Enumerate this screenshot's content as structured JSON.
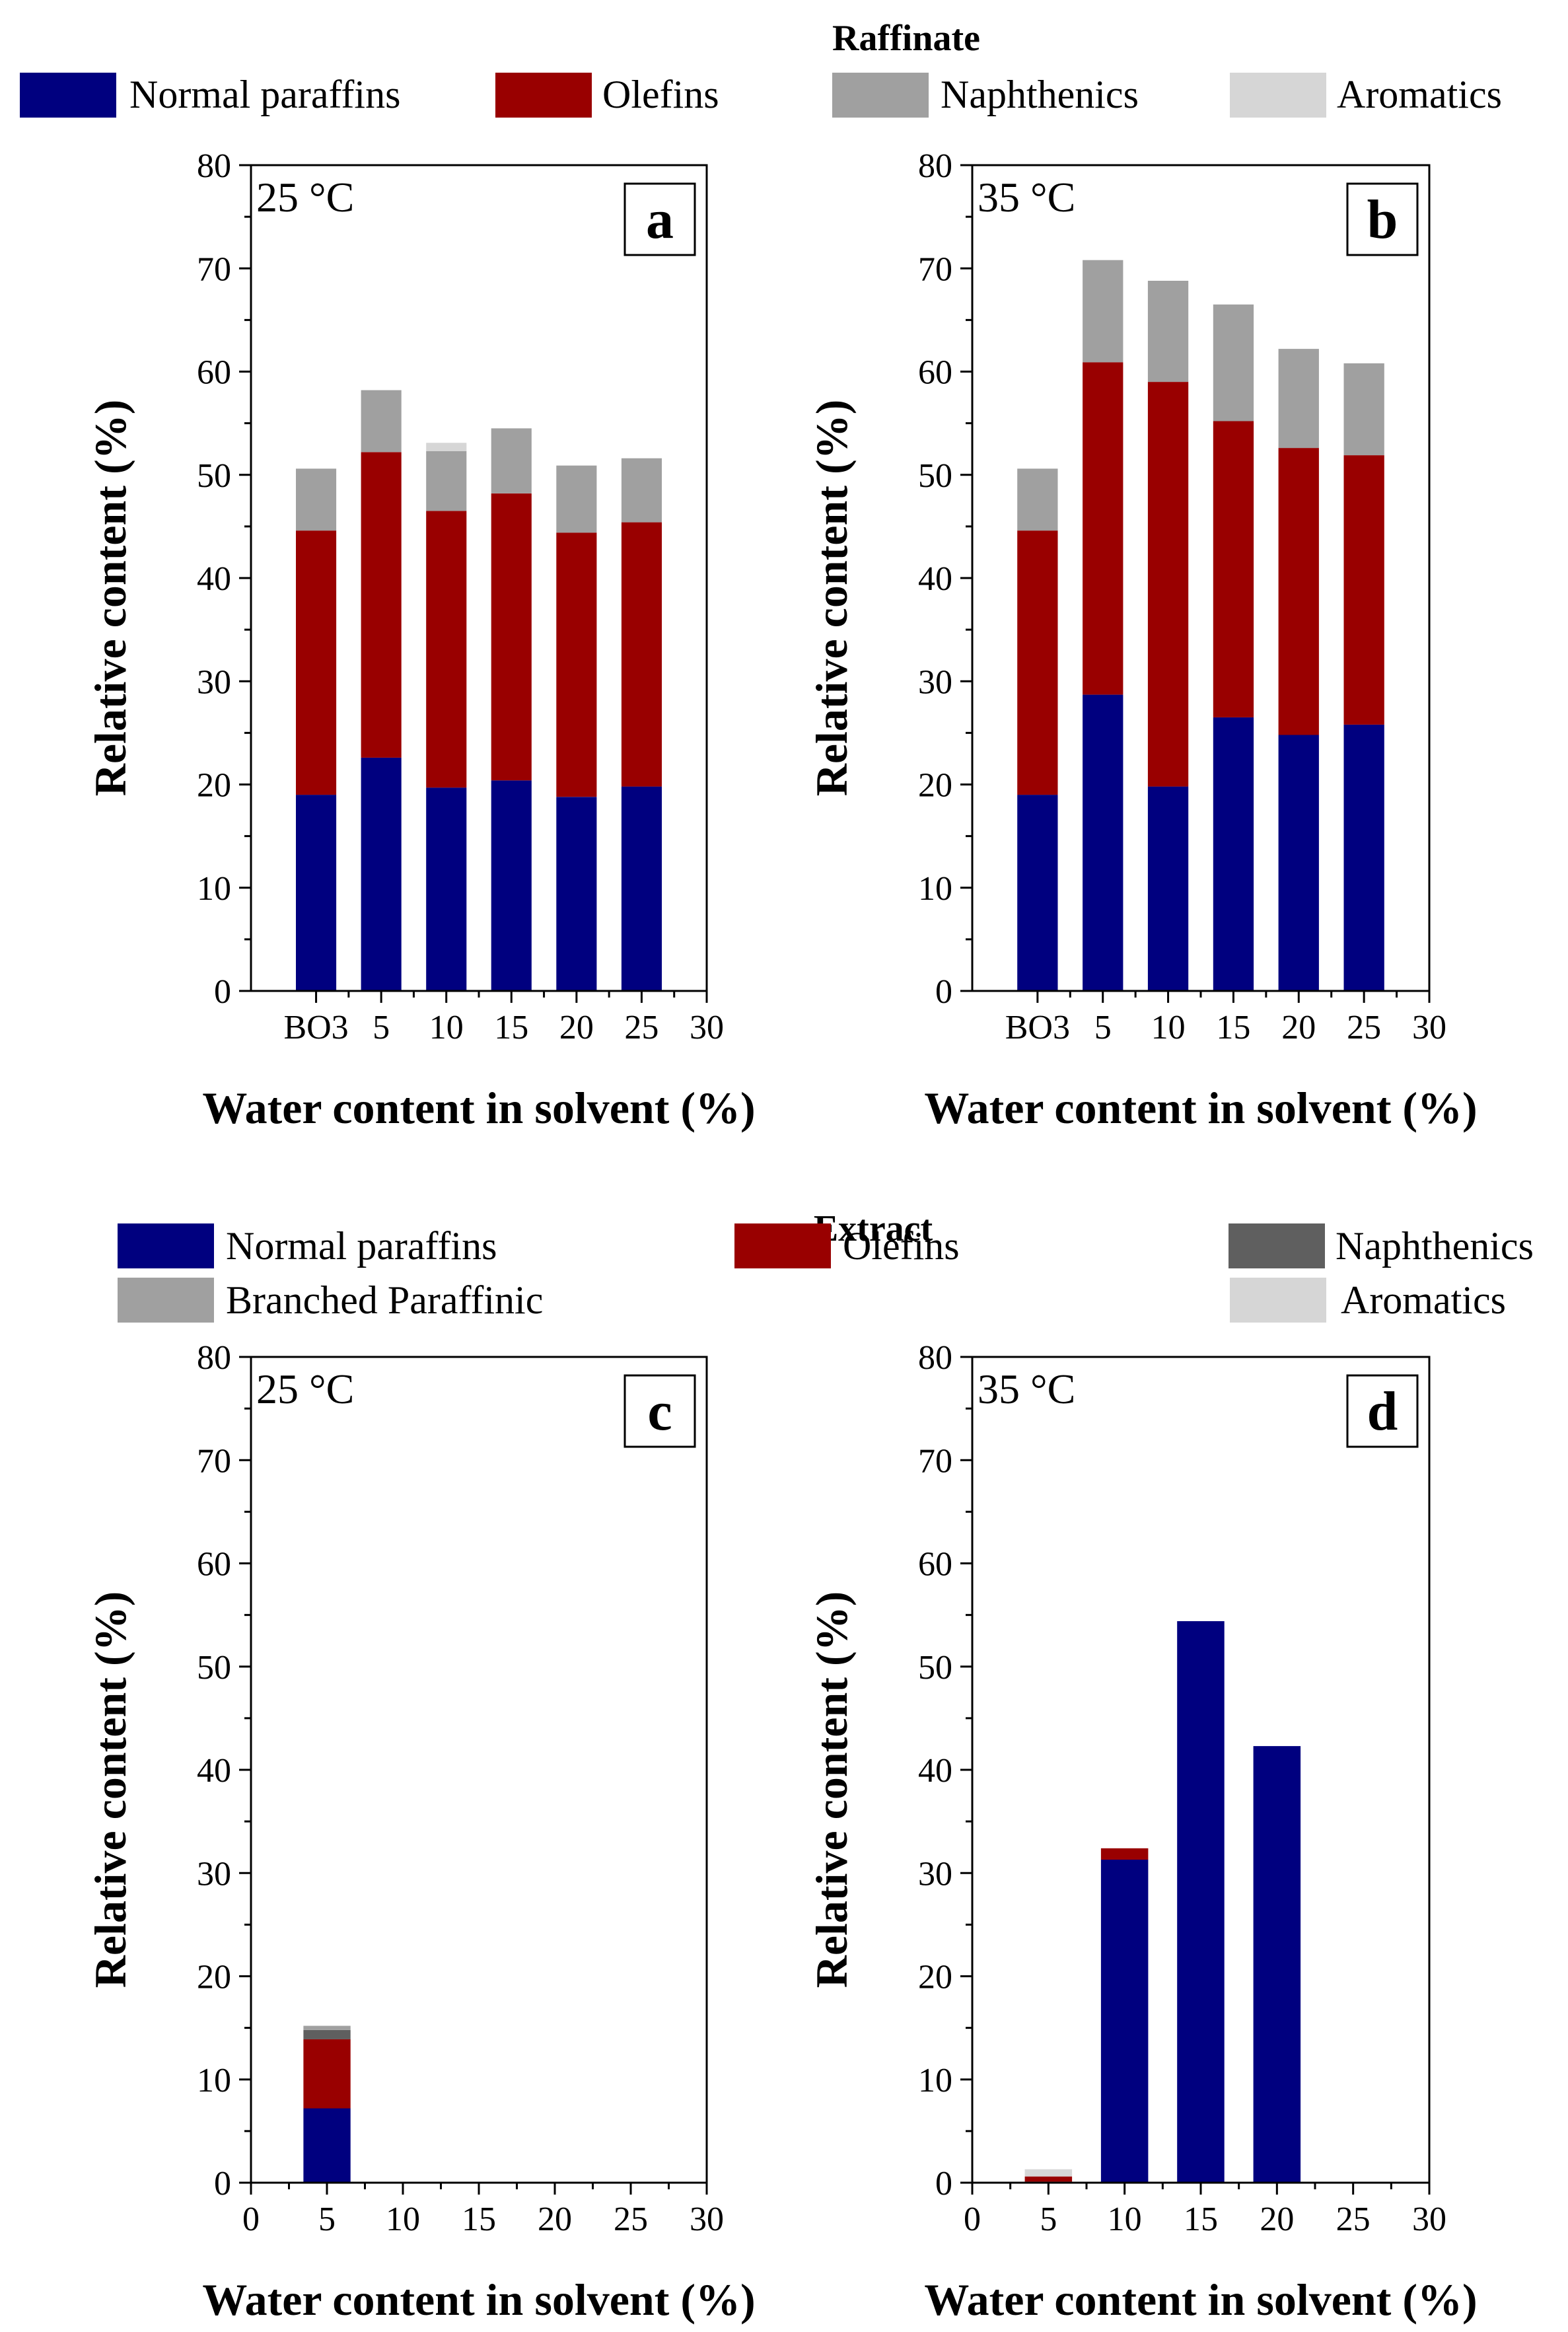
{
  "colors": {
    "normal_paraffins": "#00007f",
    "olefins": "#990000",
    "naphthenics_raffinate": "#a0a0a0",
    "aromatics": "#d6d6d6",
    "naphthenics_extract": "#5f5f5f",
    "branched_paraffinic": "#a0a0a0"
  },
  "sections": {
    "raffinate": {
      "title": "Raffinate",
      "legend": [
        "Normal paraffins",
        "Olefins",
        "Naphthenics",
        "Aromatics"
      ]
    },
    "extract": {
      "title": "Extract",
      "legend": [
        "Normal paraffins",
        "Branched Paraffinic",
        "Olefins",
        "Naphthenics",
        "Aromatics"
      ]
    }
  },
  "chart_data": [
    {
      "panel": "a",
      "type": "bar",
      "stacked": true,
      "section": "raffinate",
      "annotation": "25 °C",
      "xlabel": "Water content in solvent (%)",
      "ylabel": "Relative content (%)",
      "xlim": [
        -5,
        30
      ],
      "ylim": [
        0,
        80
      ],
      "xticks": [
        0,
        5,
        10,
        15,
        20,
        25,
        30
      ],
      "xticklabels": [
        "BO3",
        "5",
        "10",
        "15",
        "20",
        "25",
        "30"
      ],
      "yticks": [
        0,
        10,
        20,
        30,
        40,
        50,
        60,
        70,
        80
      ],
      "x": [
        0,
        5,
        10,
        15,
        20,
        25
      ],
      "series": [
        {
          "name": "Normal paraffins",
          "values": [
            19.0,
            22.6,
            19.7,
            20.4,
            18.8,
            19.8
          ]
        },
        {
          "name": "Olefins",
          "values": [
            25.6,
            29.6,
            26.8,
            27.8,
            25.6,
            25.6
          ]
        },
        {
          "name": "Naphthenics",
          "values": [
            6.0,
            6.0,
            5.8,
            6.3,
            6.5,
            6.2
          ]
        },
        {
          "name": "Aromatics",
          "values": [
            0,
            0,
            0.8,
            0,
            0,
            0
          ]
        }
      ]
    },
    {
      "panel": "b",
      "type": "bar",
      "stacked": true,
      "section": "raffinate",
      "annotation": "35 °C",
      "xlabel": "Water content in solvent (%)",
      "ylabel": "Relative content (%)",
      "xlim": [
        -5,
        30
      ],
      "ylim": [
        0,
        80
      ],
      "xticks": [
        0,
        5,
        10,
        15,
        20,
        25,
        30
      ],
      "xticklabels": [
        "BO3",
        "5",
        "10",
        "15",
        "20",
        "25",
        "30"
      ],
      "yticks": [
        0,
        10,
        20,
        30,
        40,
        50,
        60,
        70,
        80
      ],
      "x": [
        0,
        5,
        10,
        15,
        20,
        25
      ],
      "series": [
        {
          "name": "Normal paraffins",
          "values": [
            19.0,
            28.7,
            19.8,
            26.5,
            24.8,
            25.8
          ]
        },
        {
          "name": "Olefins",
          "values": [
            25.6,
            32.2,
            39.2,
            28.7,
            27.8,
            26.1
          ]
        },
        {
          "name": "Naphthenics",
          "values": [
            6.0,
            9.9,
            9.8,
            11.3,
            9.6,
            8.9
          ]
        },
        {
          "name": "Aromatics",
          "values": [
            0,
            0,
            0,
            0,
            0,
            0
          ]
        }
      ]
    },
    {
      "panel": "c",
      "type": "bar",
      "stacked": true,
      "section": "extract",
      "annotation": "25 °C",
      "xlabel": "Water content in solvent (%)",
      "ylabel": "Relative content (%)",
      "xlim": [
        0,
        30
      ],
      "ylim": [
        0,
        80
      ],
      "xticks": [
        0,
        5,
        10,
        15,
        20,
        25,
        30
      ],
      "xticklabels": [
        "0",
        "5",
        "10",
        "15",
        "20",
        "25",
        "30"
      ],
      "yticks": [
        0,
        10,
        20,
        30,
        40,
        50,
        60,
        70,
        80
      ],
      "x": [
        5
      ],
      "series": [
        {
          "name": "Normal paraffins",
          "values": [
            7.2
          ]
        },
        {
          "name": "Olefins",
          "values": [
            6.7
          ]
        },
        {
          "name": "Naphthenics",
          "values": [
            0.9
          ]
        },
        {
          "name": "Branched Paraffinic",
          "values": [
            0.4
          ]
        },
        {
          "name": "Aromatics",
          "values": [
            0
          ]
        }
      ]
    },
    {
      "panel": "d",
      "type": "bar",
      "stacked": true,
      "section": "extract",
      "annotation": "35 °C",
      "xlabel": "Water content in solvent (%)",
      "ylabel": "Relative content (%)",
      "xlim": [
        0,
        30
      ],
      "ylim": [
        0,
        80
      ],
      "xticks": [
        0,
        5,
        10,
        15,
        20,
        25,
        30
      ],
      "xticklabels": [
        "0",
        "5",
        "10",
        "15",
        "20",
        "25",
        "30"
      ],
      "yticks": [
        0,
        10,
        20,
        30,
        40,
        50,
        60,
        70,
        80
      ],
      "x": [
        5,
        10,
        15,
        20
      ],
      "series": [
        {
          "name": "Normal paraffins",
          "values": [
            0.1,
            31.3,
            54.4,
            42.3
          ]
        },
        {
          "name": "Olefins",
          "values": [
            0.5,
            1.1,
            0,
            0
          ]
        },
        {
          "name": "Naphthenics",
          "values": [
            0,
            0,
            0,
            0
          ]
        },
        {
          "name": "Branched Paraffinic",
          "values": [
            0,
            0,
            0,
            0
          ]
        },
        {
          "name": "Aromatics",
          "values": [
            0.7,
            0,
            0,
            0
          ]
        }
      ]
    }
  ]
}
